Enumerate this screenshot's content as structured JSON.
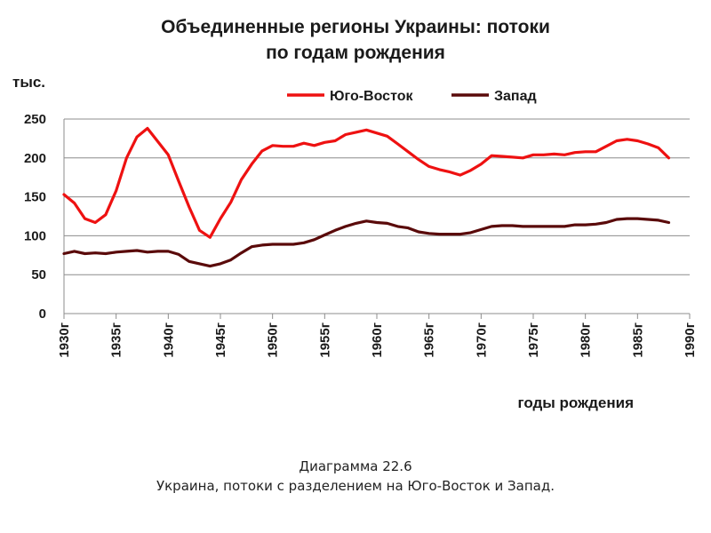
{
  "chart_data": {
    "type": "line",
    "title": "Объединенные регионы Украины: потоки по годам рождения",
    "xlabel": "годы рождения",
    "ylabel": "тыс.",
    "xlim": [
      1930,
      1990
    ],
    "ylim": [
      0,
      250
    ],
    "yticks": [
      0,
      50,
      100,
      150,
      200,
      250
    ],
    "xticks": [
      {
        "value": 1930,
        "label": "1930г"
      },
      {
        "value": 1935,
        "label": "1935г"
      },
      {
        "value": 1940,
        "label": "1940г"
      },
      {
        "value": 1945,
        "label": "1945г"
      },
      {
        "value": 1950,
        "label": "1950г"
      },
      {
        "value": 1955,
        "label": "1955г"
      },
      {
        "value": 1960,
        "label": "1960г"
      },
      {
        "value": 1965,
        "label": "1965г"
      },
      {
        "value": 1970,
        "label": "1970г"
      },
      {
        "value": 1975,
        "label": "1975г"
      },
      {
        "value": 1980,
        "label": "1980г"
      },
      {
        "value": 1985,
        "label": "1985г"
      },
      {
        "value": 1990,
        "label": "1990г"
      }
    ],
    "grid": "horizontal",
    "legend_position": "top",
    "x": [
      1930,
      1931,
      1932,
      1933,
      1934,
      1935,
      1936,
      1937,
      1938,
      1939,
      1940,
      1941,
      1942,
      1943,
      1944,
      1945,
      1946,
      1947,
      1948,
      1949,
      1950,
      1951,
      1952,
      1953,
      1954,
      1955,
      1956,
      1957,
      1958,
      1959,
      1960,
      1961,
      1962,
      1963,
      1964,
      1965,
      1966,
      1967,
      1968,
      1969,
      1970,
      1971,
      1972,
      1973,
      1974,
      1975,
      1976,
      1977,
      1978,
      1979,
      1980,
      1981,
      1982,
      1983,
      1984,
      1985,
      1986,
      1987,
      1988
    ],
    "series": [
      {
        "name": "Юго-Восток",
        "color": "#ee1111",
        "values": [
          153,
          142,
          122,
          117,
          127,
          158,
          200,
          227,
          238,
          221,
          204,
          170,
          137,
          107,
          98,
          122,
          143,
          172,
          192,
          209,
          216,
          215,
          215,
          219,
          216,
          220,
          222,
          230,
          233,
          236,
          232,
          228,
          218,
          208,
          198,
          189,
          185,
          182,
          178,
          184,
          192,
          203,
          202,
          201,
          200,
          204,
          204,
          205,
          204,
          207,
          208,
          208,
          215,
          222,
          224,
          222,
          218,
          213,
          200
        ]
      },
      {
        "name": "Запад",
        "color": "#5a0a0a",
        "values": [
          77,
          80,
          77,
          78,
          77,
          79,
          80,
          81,
          79,
          80,
          80,
          76,
          67,
          64,
          61,
          64,
          69,
          78,
          86,
          88,
          89,
          89,
          89,
          91,
          95,
          101,
          107,
          112,
          116,
          119,
          117,
          116,
          112,
          110,
          105,
          103,
          102,
          102,
          102,
          104,
          108,
          112,
          113,
          113,
          112,
          112,
          112,
          112,
          112,
          114,
          114,
          115,
          117,
          121,
          122,
          122,
          121,
          120,
          117
        ]
      }
    ]
  },
  "caption": {
    "line1": "Диаграмма 22.6",
    "line2": "Украина, потоки с разделением на Юго-Восток и Запад."
  }
}
